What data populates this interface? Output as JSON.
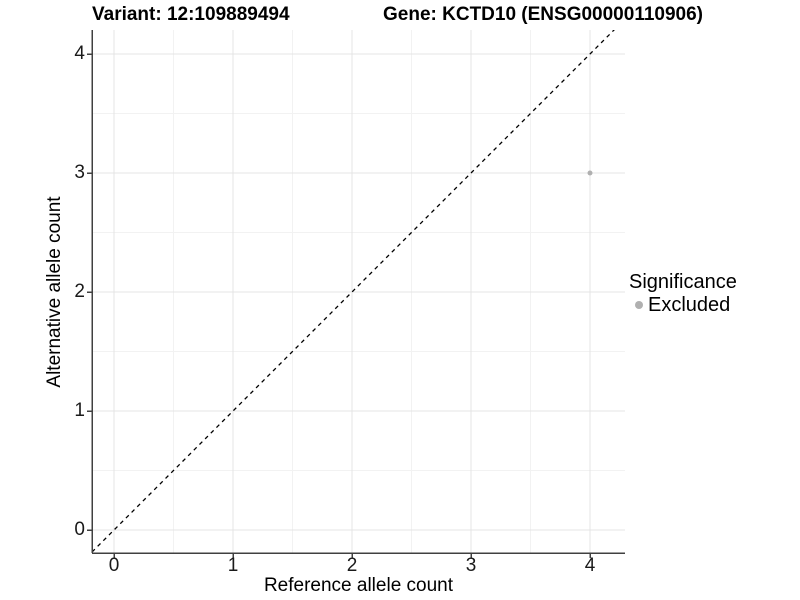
{
  "header": {
    "variant_title": "Variant: 12:109889494",
    "gene_title": "Gene: KCTD10 (ENSG00000110906)"
  },
  "chart_data": {
    "type": "scatter",
    "title_left": "Variant: 12:109889494",
    "title_right": "Gene: KCTD10 (ENSG00000110906)",
    "xlabel": "Reference allele count",
    "ylabel": "Alternative allele count",
    "xticks": [
      0,
      1,
      2,
      3,
      4
    ],
    "yticks": [
      0,
      1,
      2,
      3,
      4
    ],
    "xlim": [
      -0.185,
      4.295
    ],
    "ylim": [
      -0.195,
      4.2
    ],
    "grid": "major-and-minor",
    "legend_position": "right",
    "points": [
      {
        "x": 4,
        "y": 3,
        "series": "Excluded"
      }
    ],
    "reference_line": {
      "kind": "identity",
      "slope": 1,
      "intercept": 0,
      "style": "dashed",
      "color": "#000000"
    },
    "legend": {
      "title": "Significance",
      "entries": [
        {
          "label": "Excluded",
          "color": "#b0b0b0",
          "marker": "circle"
        }
      ]
    },
    "style": {
      "grid_major_color": "#e4e4e4",
      "grid_minor_color": "#f2f2f2",
      "axis_line_color": "#404040",
      "tick_label_color": "#1a1a1a",
      "point_color": "#b0b0b0",
      "panel_background": "#ffffff"
    }
  }
}
